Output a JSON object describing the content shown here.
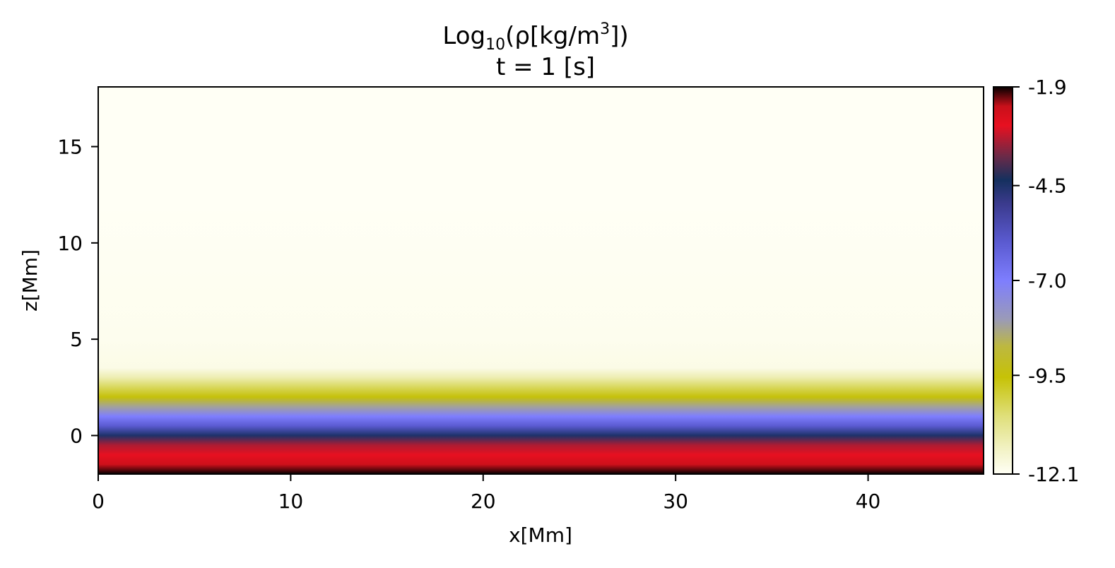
{
  "chart_data": {
    "type": "heatmap",
    "title": {
      "prefix": "Log",
      "subscript": "10",
      "body": "(ρ[kg/m",
      "superscript": "3",
      "suffix": "])",
      "line2": "t = 1 [s]"
    },
    "xlabel": "x[Mm]",
    "ylabel": "z[Mm]",
    "xlim": [
      0,
      46
    ],
    "ylim": [
      -2,
      18.1
    ],
    "x_ticks": [
      0,
      10,
      20,
      30,
      40
    ],
    "y_ticks": [
      0,
      5,
      10,
      15
    ],
    "x_tick_labels": [
      "0",
      "10",
      "20",
      "30",
      "40"
    ],
    "y_tick_labels": [
      "0",
      "5",
      "10",
      "15"
    ],
    "colorbar": {
      "min": -12.1,
      "max": -1.9,
      "ticks": [
        -12.1,
        -9.5,
        -7.0,
        -4.5,
        -1.9
      ],
      "tick_labels": [
        "-12.1",
        "-9.5",
        "-7.0",
        "-4.5",
        "-1.9"
      ],
      "colormap": [
        {
          "v": 0.0,
          "color": "#fffff5"
        },
        {
          "v": 0.06,
          "color": "#f3f3c8"
        },
        {
          "v": 0.15,
          "color": "#dfdf7a"
        },
        {
          "v": 0.25,
          "color": "#c6c206"
        },
        {
          "v": 0.33,
          "color": "#bdb840"
        },
        {
          "v": 0.4,
          "color": "#9a9ab8"
        },
        {
          "v": 0.5,
          "color": "#7e7efe"
        },
        {
          "v": 0.6,
          "color": "#5a5ad0"
        },
        {
          "v": 0.7,
          "color": "#3a3a8c"
        },
        {
          "v": 0.76,
          "color": "#15305e"
        },
        {
          "v": 0.82,
          "color": "#6a2a48"
        },
        {
          "v": 0.9,
          "color": "#e81020"
        },
        {
          "v": 0.95,
          "color": "#c8101a"
        },
        {
          "v": 1.0,
          "color": "#050000"
        }
      ]
    },
    "field": {
      "description_axis": "z",
      "z": [
        -2.0,
        -1.5,
        -1.0,
        -0.5,
        0.0,
        0.5,
        1.0,
        1.5,
        2.0,
        2.5,
        3.0,
        3.5,
        5.0,
        12.0,
        18.1
      ],
      "log10_rho": [
        -1.9,
        -2.5,
        -2.9,
        -3.3,
        -4.5,
        -6.0,
        -7.0,
        -8.2,
        -9.5,
        -10.3,
        -11.2,
        -11.9,
        -12.0,
        -12.1,
        -12.1
      ]
    }
  }
}
